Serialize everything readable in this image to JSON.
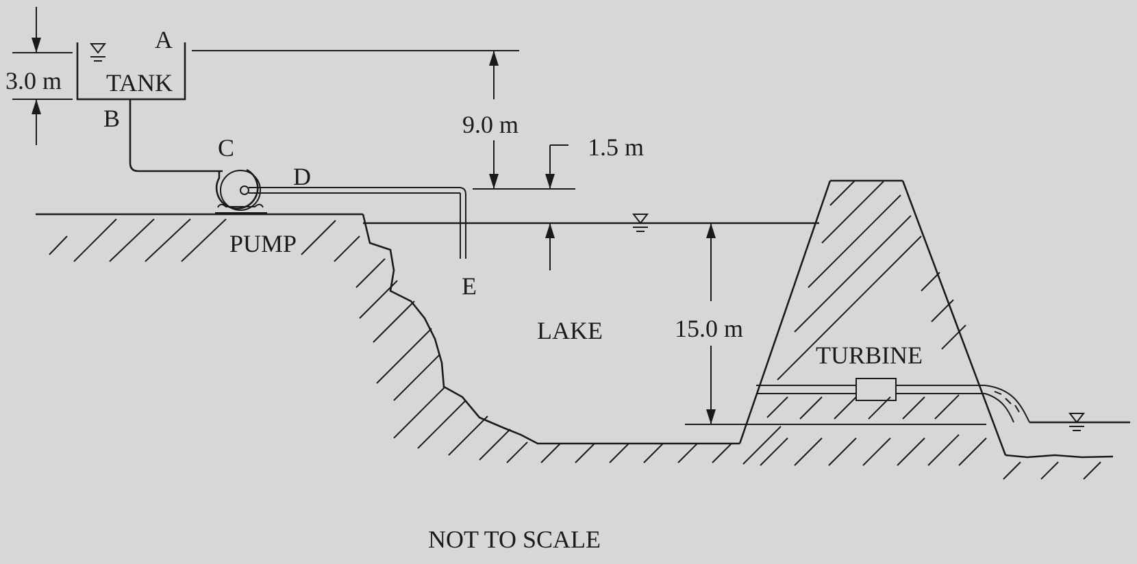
{
  "labels": {
    "tank": "TANK",
    "point_a": "A",
    "point_b": "B",
    "point_c": "C",
    "point_d": "D",
    "point_e": "E",
    "pump": "PUMP",
    "lake": "LAKE",
    "turbine": "TURBINE",
    "not_to_scale": "NOT TO SCALE"
  },
  "dimensions": {
    "tank_depth": "3.0 m",
    "tank_height": "9.0 m",
    "pump_above_lake": "1.5 m",
    "lake_depth": "15.0 m"
  }
}
